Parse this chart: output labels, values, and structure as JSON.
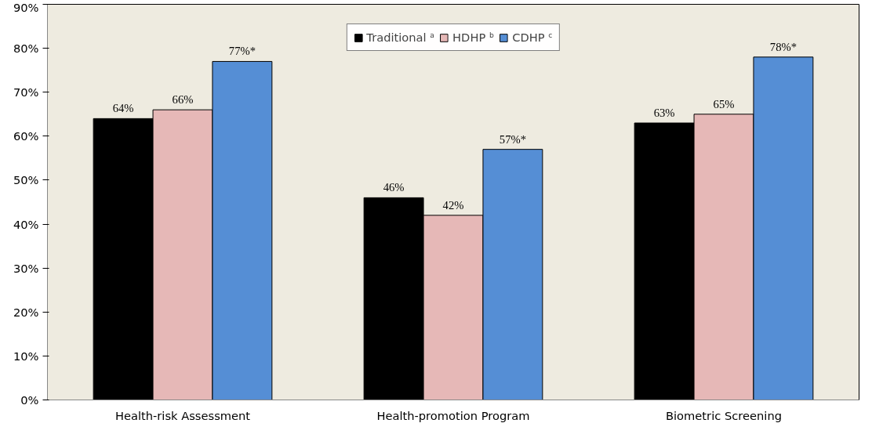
{
  "chart_data": {
    "type": "bar",
    "categories": [
      "Health-risk Assessment",
      "Health-promotion Program",
      "Biometric Screening"
    ],
    "series": [
      {
        "name": "Traditional ᵃ",
        "color": "#000000",
        "values": [
          64,
          46,
          63
        ],
        "value_labels": [
          "64%",
          "46%",
          "63%"
        ]
      },
      {
        "name": "HDHP ᵇ",
        "color": "#e6b8b7",
        "values": [
          66,
          42,
          65
        ],
        "value_labels": [
          "66%",
          "42%",
          "65%"
        ]
      },
      {
        "name": "CDHP ᶜ",
        "color": "#558ed5",
        "values": [
          77,
          57,
          78
        ],
        "value_labels": [
          "77%*",
          "57%*",
          "78%*"
        ]
      }
    ],
    "ylim": [
      0,
      90
    ],
    "yticks": [
      {
        "value": 0,
        "label": "0%"
      },
      {
        "value": 10,
        "label": "10%"
      },
      {
        "value": 20,
        "label": "20%"
      },
      {
        "value": 30,
        "label": "30%"
      },
      {
        "value": 40,
        "label": "40%"
      },
      {
        "value": 50,
        "label": "50%"
      },
      {
        "value": 60,
        "label": "60%"
      },
      {
        "value": 70,
        "label": "70%"
      },
      {
        "value": 80,
        "label": "80%"
      },
      {
        "value": 90,
        "label": "90%"
      }
    ],
    "grid": false,
    "legend": "top"
  }
}
